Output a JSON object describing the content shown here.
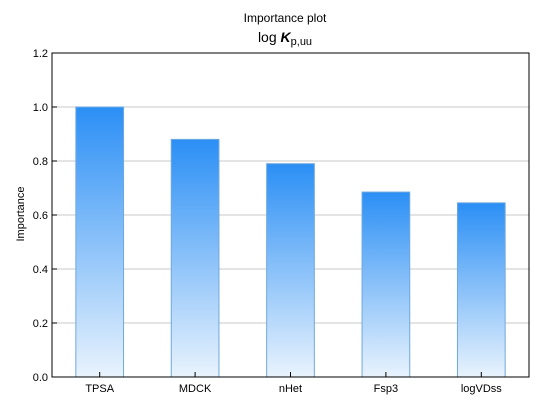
{
  "chart_data": {
    "type": "bar",
    "title": "Importance plot",
    "subtitle": {
      "prefix": "log ",
      "variable": "K",
      "subscript": "p,uu"
    },
    "ylabel": "Importance",
    "xlabel": "",
    "categories": [
      "TPSA",
      "MDCK",
      "nHet",
      "Fsp3",
      "logVDss"
    ],
    "values": [
      1.0,
      0.88,
      0.79,
      0.685,
      0.645
    ],
    "ylim": [
      0.0,
      1.2
    ],
    "yticks": [
      "0.0",
      "0.2",
      "0.4",
      "0.6",
      "0.8",
      "1.0",
      "1.2"
    ],
    "grid": true,
    "legend": "none",
    "colors": {
      "bar_top": "#2b8ff5",
      "bar_bottom": "#e9f3fd",
      "bar_edge": "#6fa8df",
      "grid": "#c8c8c8",
      "frame": "#000000"
    }
  }
}
